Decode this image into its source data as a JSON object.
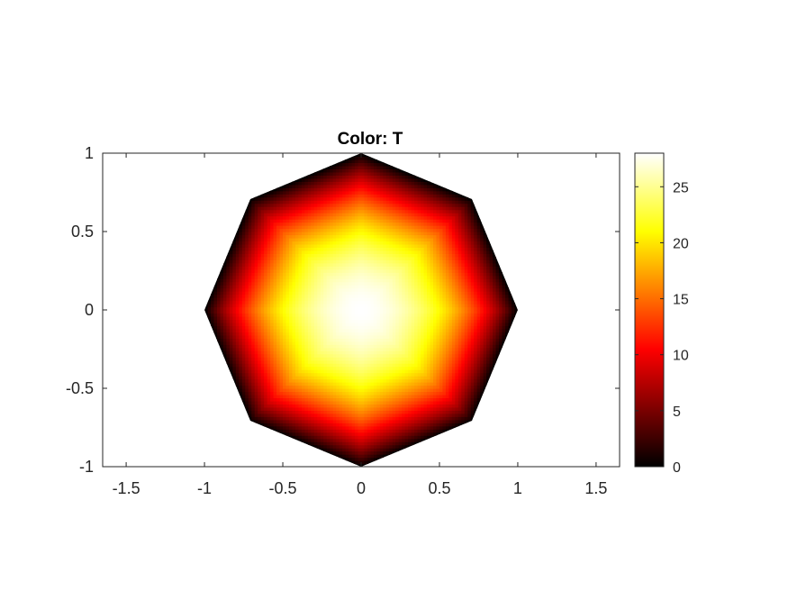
{
  "chart_data": {
    "type": "heatmap",
    "title": "Color: T",
    "xlabel": "",
    "ylabel": "",
    "xlim": [
      -1.65,
      1.65
    ],
    "ylim": [
      -1,
      1
    ],
    "x_ticks": [
      -1.5,
      -1,
      -0.5,
      0,
      0.5,
      1,
      1.5
    ],
    "x_tick_labels": [
      "-1.5",
      "-1",
      "-0.5",
      "0",
      "0.5",
      "1",
      "1.5"
    ],
    "y_ticks": [
      -1,
      -0.5,
      0,
      0.5,
      1
    ],
    "y_tick_labels": [
      "-1",
      "-0.5",
      "0",
      "0.5",
      "1"
    ],
    "domain": {
      "shape": "regular octagon",
      "circumradius": 1,
      "vertices_polar_deg": [
        0,
        45,
        90,
        135,
        180,
        225,
        270,
        315
      ]
    },
    "field": {
      "name": "T",
      "center_value": 28,
      "boundary_value": 0,
      "max_value": 28
    },
    "colormap": "hot",
    "colorbar": {
      "limits": [
        0,
        28
      ],
      "ticks": [
        0,
        5,
        10,
        15,
        20,
        25
      ],
      "tick_labels": [
        "0",
        "5",
        "10",
        "15",
        "20",
        "25"
      ],
      "location": "right"
    },
    "grid": false,
    "box": true
  }
}
